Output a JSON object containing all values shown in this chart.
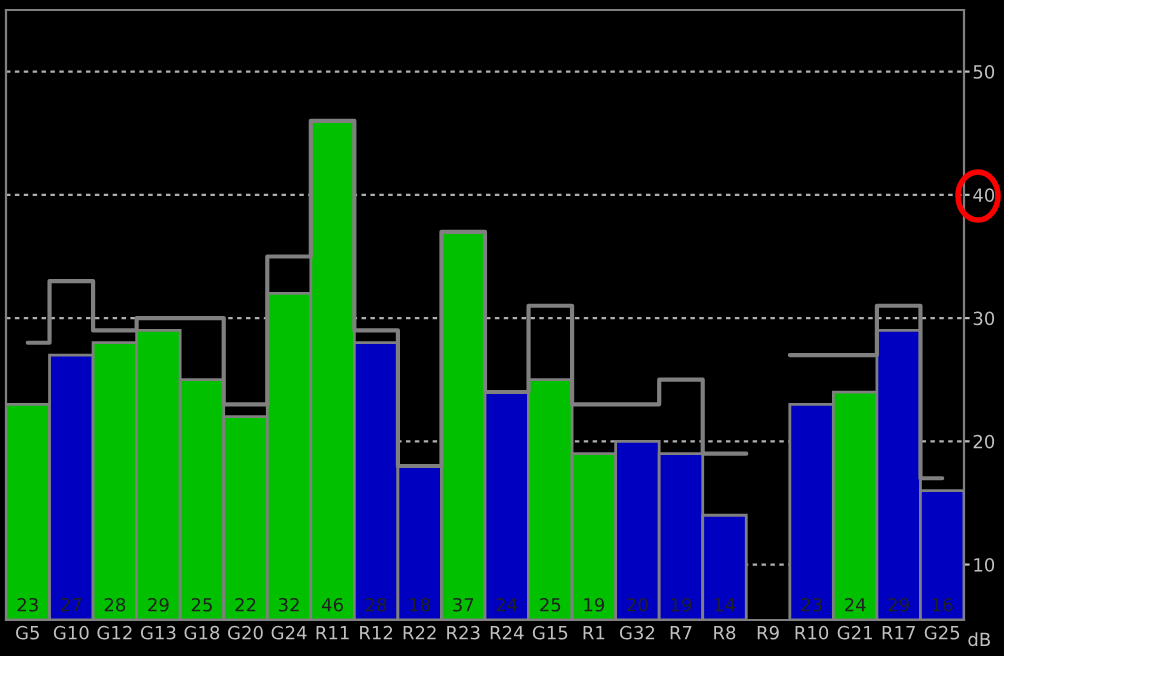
{
  "chart_data": {
    "type": "bar",
    "ylabel": "dB",
    "categories": [
      "G5",
      "G10",
      "G12",
      "G13",
      "G18",
      "G20",
      "G24",
      "R11",
      "R12",
      "R22",
      "R23",
      "R24",
      "G15",
      "R1",
      "G32",
      "R7",
      "R8",
      "R9",
      "R10",
      "G21",
      "R17",
      "G25"
    ],
    "series": [
      {
        "colors": [
          "#00c000",
          "#0000c0",
          "#00c000",
          "#00c000",
          "#00c000",
          "#00c000",
          "#00c000",
          "#00c000",
          "#0000c0",
          "#0000c0",
          "#00c000",
          "#0000c0",
          "#00c000",
          "#00c000",
          "#0000c0",
          "#0000c0",
          "#0000c0",
          "#000000",
          "#0000c0",
          "#00c000",
          "#0000c0",
          "#0000c0"
        ],
        "values": [
          23,
          27,
          28,
          29,
          25,
          22,
          32,
          46,
          28,
          18,
          37,
          24,
          25,
          19,
          20,
          19,
          14,
          null,
          23,
          24,
          29,
          16
        ],
        "value_labels": [
          "23",
          "27",
          "28",
          "29",
          "25",
          "22",
          "32",
          "46",
          "28",
          "18",
          "37",
          "24",
          "25",
          "19",
          "20",
          "19",
          "14",
          null,
          "23",
          "24",
          "29",
          "16"
        ]
      },
      {
        "type": "step",
        "color": "#808080",
        "values": [
          28,
          33,
          29,
          30,
          30,
          23,
          35,
          46,
          29,
          18,
          37,
          24,
          31,
          23,
          23,
          25,
          19,
          null,
          27,
          27,
          31,
          17
        ]
      }
    ],
    "ylim": [
      5.5,
      55
    ],
    "yticks": [
      10,
      20,
      30,
      40,
      50
    ],
    "grid": "y"
  }
}
